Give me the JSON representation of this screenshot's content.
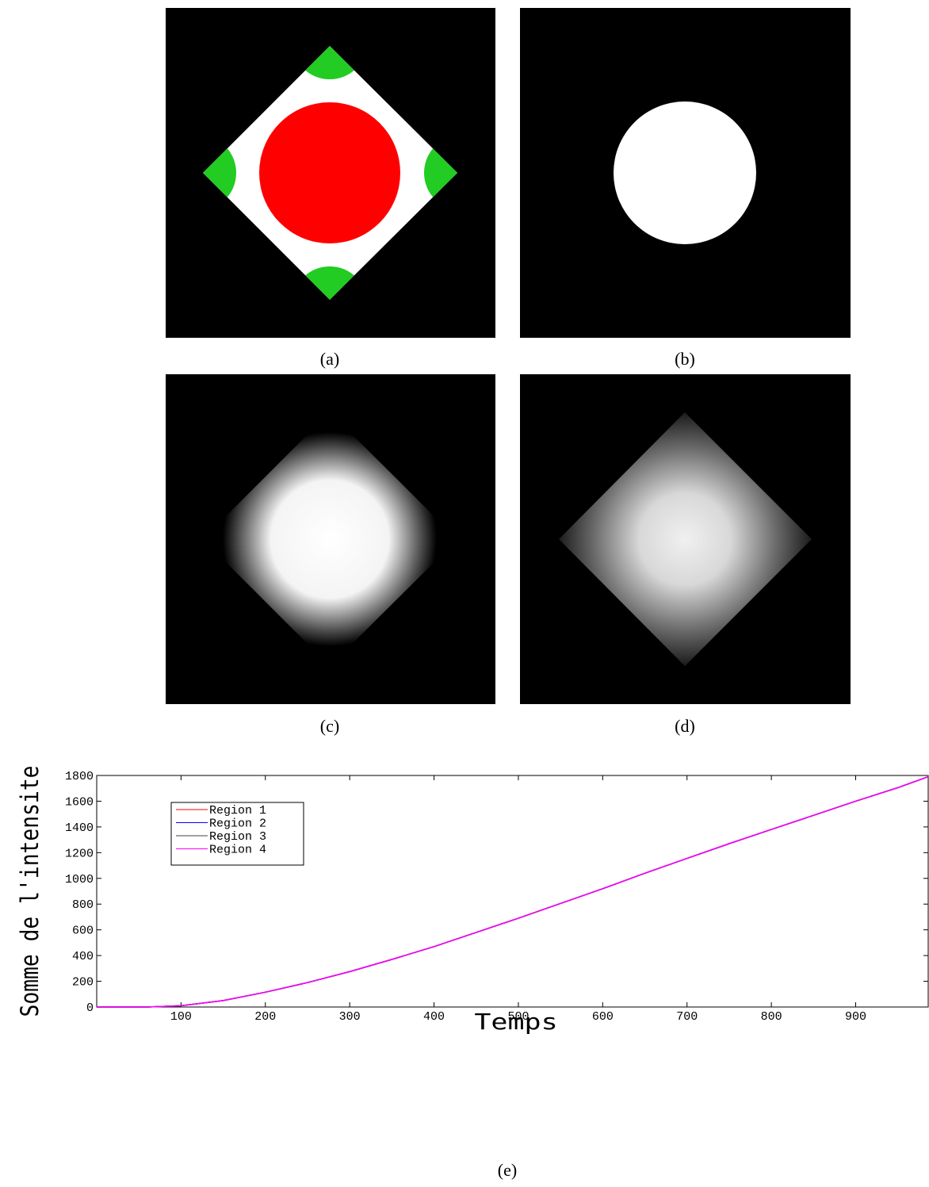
{
  "panels": [
    "(a)",
    "(b)",
    "(c)",
    "(d)"
  ],
  "chart_data": {
    "type": "line",
    "caption": "(e)",
    "xlabel": "Temps",
    "ylabel": "Somme de l'intensite",
    "x": [
      0,
      60,
      100,
      150,
      200,
      250,
      300,
      350,
      400,
      450,
      500,
      550,
      600,
      650,
      700,
      750,
      800,
      850,
      900,
      950,
      986
    ],
    "series": [
      {
        "name": "Region 1",
        "color": "#ff0000",
        "values": [
          0,
          0,
          10,
          50,
          115,
          190,
          275,
          370,
          470,
          580,
          690,
          805,
          920,
          1040,
          1155,
          1270,
          1380,
          1490,
          1600,
          1705,
          1790
        ]
      },
      {
        "name": "Region 2",
        "color": "#0000ff",
        "values": [
          0,
          0,
          10,
          50,
          115,
          190,
          275,
          370,
          470,
          580,
          690,
          805,
          920,
          1040,
          1155,
          1270,
          1380,
          1490,
          1600,
          1705,
          1790
        ]
      },
      {
        "name": "Region 3",
        "color": "#444444",
        "values": [
          0,
          0,
          10,
          50,
          115,
          190,
          275,
          370,
          470,
          580,
          690,
          805,
          920,
          1040,
          1155,
          1270,
          1380,
          1490,
          1600,
          1705,
          1790
        ]
      },
      {
        "name": "Region 4",
        "color": "#ff00ff",
        "values": [
          0,
          0,
          10,
          50,
          115,
          190,
          275,
          370,
          470,
          580,
          690,
          805,
          920,
          1040,
          1155,
          1270,
          1380,
          1490,
          1600,
          1705,
          1790
        ]
      }
    ],
    "xlim": [
      0,
      986
    ],
    "xticks": [
      100,
      200,
      300,
      400,
      500,
      600,
      700,
      800,
      900
    ],
    "ylim": [
      0,
      1800
    ],
    "yticks": [
      0,
      200,
      400,
      600,
      800,
      1000,
      1200,
      1400,
      1600,
      1800
    ],
    "legend": "upper left"
  }
}
